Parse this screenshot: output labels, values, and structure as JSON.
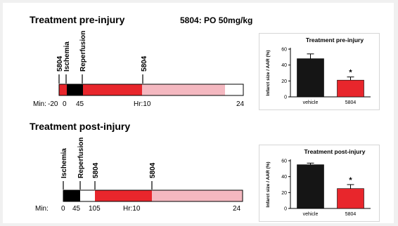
{
  "colors": {
    "ischemia": "#000000",
    "infarct_red": "#e8262c",
    "pink": "#f4b8c0",
    "white": "#ffffff",
    "vehicle_bar": "#151515",
    "drug_bar": "#e8262c"
  },
  "header": {
    "pre_title": "Treatment pre-injury",
    "post_title": "Treatment post-injury",
    "dose": "5804: PO 50mg/kg"
  },
  "timelines": [
    {
      "id": "pre",
      "marker_labels": [
        "5804",
        "Ischemia",
        "Reperfusion",
        "5804"
      ],
      "axis_prefix": "Min:",
      "tick_labels": [
        "-20",
        "0",
        "45",
        "Hr:10",
        "24"
      ],
      "segments": [
        {
          "color": "infarct_red"
        },
        {
          "color": "ischemia"
        },
        {
          "color": "infarct_red"
        },
        {
          "color": "pink"
        },
        {
          "color": "white"
        }
      ]
    },
    {
      "id": "post",
      "marker_labels": [
        "Ischemia",
        "Reperfusion",
        "5804",
        "5804"
      ],
      "axis_prefix": "Min:",
      "tick_labels": [
        "0",
        "45",
        "105",
        "Hr:10",
        "24"
      ],
      "segments": [
        {
          "color": "ischemia"
        },
        {
          "color": "white"
        },
        {
          "color": "infarct_red"
        },
        {
          "color": "pink"
        }
      ]
    }
  ],
  "chart_data": [
    {
      "type": "bar",
      "title": "Treatment pre-injury",
      "ylabel": "Infarct size / AAR (%)",
      "xlabel": "",
      "categories": [
        "vehicle",
        "5804"
      ],
      "values": [
        48,
        21
      ],
      "errors": [
        6,
        4
      ],
      "ylim": [
        0,
        60
      ],
      "yticks": [
        "0",
        "20",
        "40",
        "60"
      ],
      "significance": "*",
      "significance_category": "5804"
    },
    {
      "type": "bar",
      "title": "Treatment post-injury",
      "ylabel": "Infarct size / AAR (%)",
      "xlabel": "",
      "categories": [
        "vehicle",
        "5804"
      ],
      "values": [
        55,
        25
      ],
      "errors": [
        2,
        5
      ],
      "ylim": [
        0,
        60
      ],
      "yticks": [
        "0",
        "20",
        "40",
        "60"
      ],
      "significance": "*",
      "significance_category": "5804"
    }
  ]
}
